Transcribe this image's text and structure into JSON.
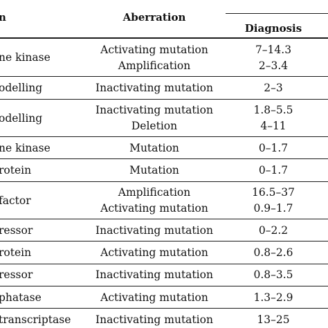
{
  "headers": {
    "function": "n",
    "aberration": "Aberration",
    "diagnosis": "Diagnosis"
  },
  "rows": [
    {
      "function": "ne kinase",
      "aberration": [
        "Activating mutation",
        "Amplification"
      ],
      "diagnosis": [
        "7–14.3",
        "2–3.4"
      ]
    },
    {
      "function": "odelling",
      "aberration": [
        "Inactivating mutation"
      ],
      "diagnosis": [
        "2–3"
      ]
    },
    {
      "function": "odelling",
      "aberration": [
        "Inactivating mutation",
        "Deletion"
      ],
      "diagnosis": [
        "1.8–5.5",
        "4–11"
      ]
    },
    {
      "function": "ne kinase",
      "aberration": [
        "Mutation"
      ],
      "diagnosis": [
        "0–1.7"
      ]
    },
    {
      "function": "rotein",
      "aberration": [
        "Mutation"
      ],
      "diagnosis": [
        "0–1.7"
      ]
    },
    {
      "function": " factor",
      "aberration": [
        "Amplification",
        "Activating mutation"
      ],
      "diagnosis": [
        "16.5–37",
        "0.9–1.7"
      ]
    },
    {
      "function": "ressor",
      "aberration": [
        "Inactivating mutation"
      ],
      "diagnosis": [
        "0–2.2"
      ]
    },
    {
      "function": "rotein",
      "aberration": [
        "Activating mutation"
      ],
      "diagnosis": [
        "0.8–2.6"
      ]
    },
    {
      "function": "ressor",
      "aberration": [
        "Inactivating mutation"
      ],
      "diagnosis": [
        "0.8–3.5"
      ]
    },
    {
      "function": "phatase",
      "aberration": [
        "Activating mutation"
      ],
      "diagnosis": [
        "1.3–2.9"
      ]
    },
    {
      "function": "transcriptase",
      "aberration": [
        "Inactivating mutation"
      ],
      "diagnosis": [
        "13–25"
      ]
    }
  ]
}
